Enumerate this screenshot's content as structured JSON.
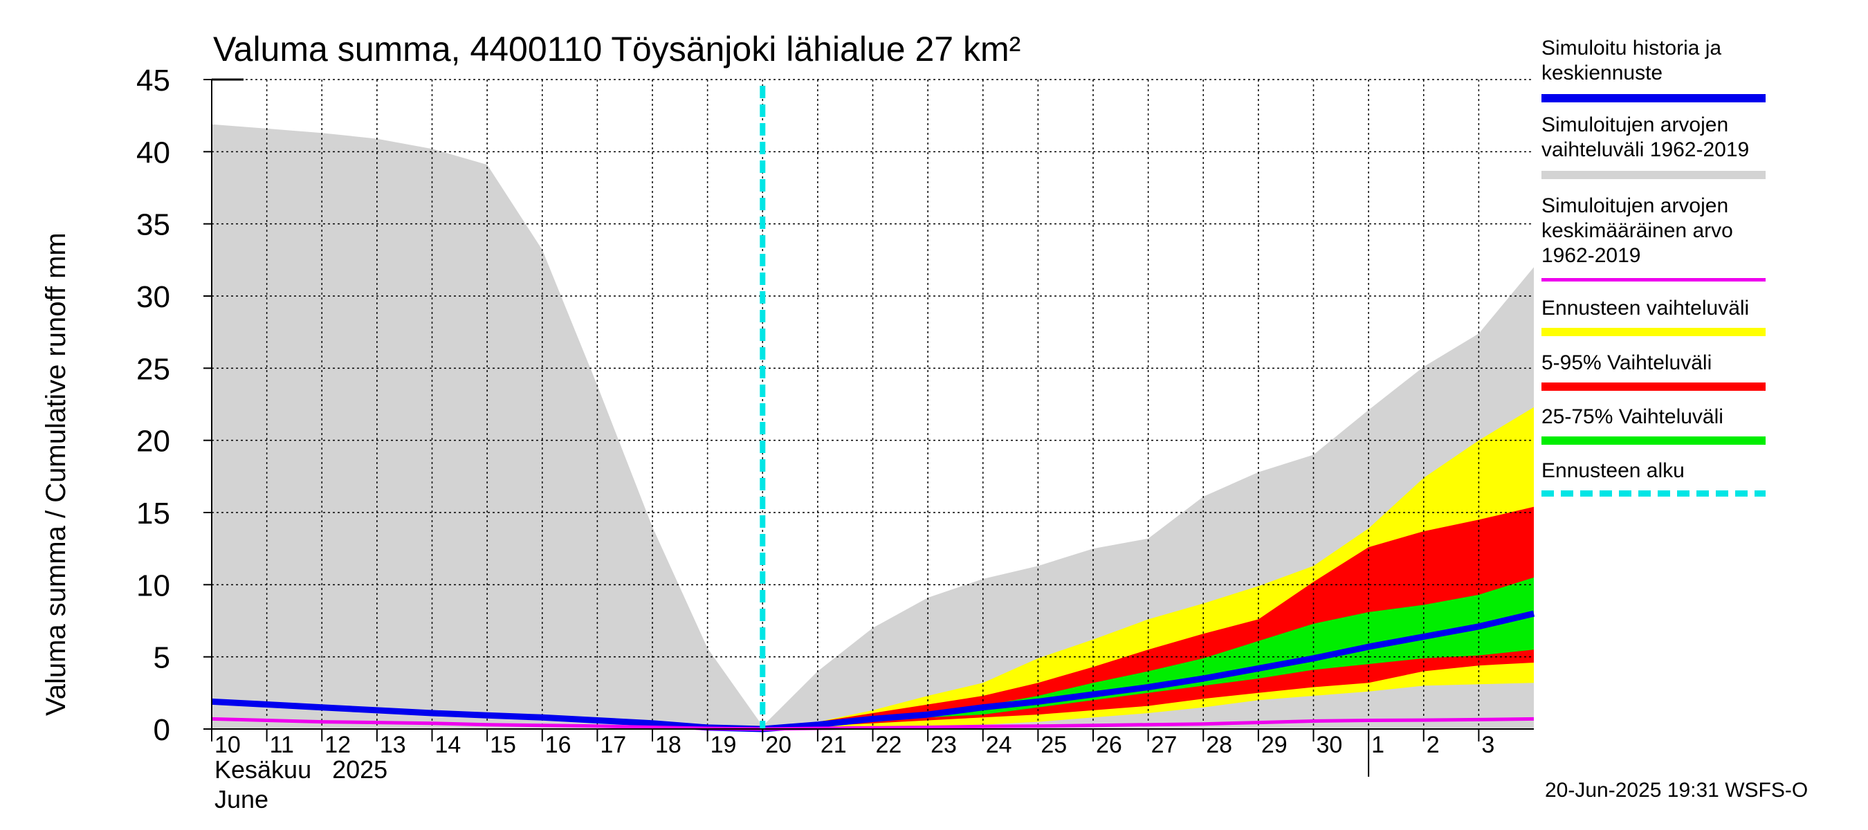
{
  "chart_data": {
    "type": "area",
    "title": "Valuma summa, 4400110 Töysänjoki lähialue 27 km²",
    "ylabel": "Valuma summa / Cumulative runoff    mm",
    "ylim": [
      0,
      45
    ],
    "yticks": [
      0,
      5,
      10,
      15,
      20,
      25,
      30,
      35,
      40,
      45
    ],
    "xlim": [
      0,
      24
    ],
    "x_tick_labels": [
      "10",
      "11",
      "12",
      "13",
      "14",
      "15",
      "16",
      "17",
      "18",
      "19",
      "20",
      "21",
      "22",
      "23",
      "24",
      "25",
      "26",
      "27",
      "28",
      "29",
      "30",
      "1",
      "2",
      "3"
    ],
    "x_month_label_fi": "Kesäkuu   2025",
    "x_month_label_en": "June",
    "timestamp": "20-Jun-2025 19:31 WSFS-O",
    "forecast_start_x": 10,
    "grid": true,
    "legend_position": "right",
    "legend": [
      {
        "label": "Simuloitu historia ja\nkeskiennuste",
        "color": "#0000ee",
        "style": "solid"
      },
      {
        "label": "Simuloitujen arvojen\nvaihteluväli 1962-2019",
        "color": "#d3d3d3",
        "style": "solid"
      },
      {
        "label": "Simuloitujen arvojen\nkeskimääräinen arvo\n   1962-2019",
        "color": "#ee00ee",
        "style": "solid"
      },
      {
        "label": "Ennusteen vaihteluväli",
        "color": "#ffff00",
        "style": "solid"
      },
      {
        "label": "5-95% Vaihteluväli",
        "color": "#ff0000",
        "style": "solid"
      },
      {
        "label": "25-75% Vaihteluväli",
        "color": "#00ee00",
        "style": "solid"
      },
      {
        "label": "Ennusteen alku",
        "color": "#00e5e5",
        "style": "dashed"
      }
    ],
    "historical_range": {
      "x": [
        0,
        1,
        2,
        3,
        4,
        5,
        6,
        7,
        8,
        9,
        10,
        11,
        12,
        13,
        14,
        15,
        16,
        17,
        18,
        19,
        20,
        21,
        22,
        23,
        24
      ],
      "upper": [
        41.9,
        41.6,
        41.3,
        40.9,
        40.2,
        39.1,
        33.2,
        23.8,
        14.0,
        5.6,
        0.2,
        4.0,
        7.0,
        9.1,
        10.4,
        11.3,
        12.5,
        13.2,
        16.1,
        17.8,
        19.0,
        22.1,
        25.1,
        27.4,
        32.0
      ],
      "lower": [
        0,
        0,
        0,
        0,
        0,
        0,
        0,
        0,
        0,
        0,
        0,
        0,
        0,
        0,
        0,
        0,
        0,
        0,
        0,
        0,
        0,
        0,
        0,
        0,
        0
      ]
    },
    "forecast_range": {
      "x": [
        10,
        11,
        12,
        13,
        14,
        15,
        16,
        17,
        18,
        19,
        20,
        21,
        22,
        23,
        24
      ],
      "upper": [
        0.2,
        0.5,
        1.3,
        2.3,
        3.2,
        4.9,
        6.2,
        7.6,
        8.7,
        9.9,
        11.3,
        13.9,
        17.4,
        20.0,
        22.3
      ],
      "lower": [
        0.1,
        0.1,
        0.1,
        0.2,
        0.3,
        0.5,
        0.8,
        1.1,
        1.5,
        2.0,
        2.3,
        2.6,
        3.0,
        3.1,
        3.2
      ]
    },
    "p5_95": {
      "x": [
        10,
        11,
        12,
        13,
        14,
        15,
        16,
        17,
        18,
        19,
        20,
        21,
        22,
        23,
        24
      ],
      "upper": [
        0.2,
        0.5,
        1.1,
        1.7,
        2.3,
        3.2,
        4.3,
        5.5,
        6.6,
        7.6,
        10.2,
        12.6,
        13.7,
        14.5,
        15.4
      ],
      "lower": [
        0.1,
        0.2,
        0.4,
        0.6,
        0.8,
        1.0,
        1.3,
        1.6,
        2.1,
        2.5,
        2.9,
        3.2,
        4.0,
        4.4,
        4.6
      ]
    },
    "p25_75": {
      "x": [
        10,
        11,
        12,
        13,
        14,
        15,
        16,
        17,
        18,
        19,
        20,
        21,
        22,
        23,
        24
      ],
      "upper": [
        0.2,
        0.4,
        0.8,
        1.2,
        1.6,
        2.3,
        3.2,
        4.0,
        4.9,
        6.1,
        7.3,
        8.1,
        8.6,
        9.3,
        10.5
      ],
      "lower": [
        0.1,
        0.2,
        0.5,
        0.8,
        1.0,
        1.5,
        2.0,
        2.5,
        3.0,
        3.5,
        4.1,
        4.5,
        4.9,
        5.1,
        5.5
      ]
    },
    "series": [
      {
        "name": "Simuloitu historia ja keskiennuste",
        "color": "#0000ee",
        "x": [
          0,
          1,
          2,
          3,
          4,
          5,
          6,
          7,
          8,
          9,
          10,
          11,
          12,
          13,
          14,
          15,
          16,
          17,
          18,
          19,
          20,
          21,
          22,
          23,
          24
        ],
        "values": [
          1.9,
          1.7,
          1.5,
          1.3,
          1.1,
          0.95,
          0.8,
          0.6,
          0.4,
          0.1,
          0.0,
          0.3,
          0.7,
          1.0,
          1.5,
          1.9,
          2.4,
          2.9,
          3.5,
          4.2,
          4.9,
          5.7,
          6.4,
          7.1,
          8.0
        ]
      },
      {
        "name": "Simuloitujen arvojen keskimääräinen arvo 1962-2019",
        "color": "#ee00ee",
        "x": [
          0,
          1,
          2,
          3,
          4,
          5,
          6,
          7,
          8,
          9,
          10,
          11,
          12,
          13,
          14,
          15,
          16,
          17,
          18,
          19,
          20,
          21,
          22,
          23,
          24
        ],
        "values": [
          0.7,
          0.6,
          0.5,
          0.45,
          0.4,
          0.3,
          0.25,
          0.2,
          0.12,
          0.05,
          0.0,
          0.05,
          0.08,
          0.12,
          0.18,
          0.2,
          0.25,
          0.3,
          0.35,
          0.45,
          0.55,
          0.6,
          0.62,
          0.65,
          0.7
        ]
      }
    ]
  }
}
